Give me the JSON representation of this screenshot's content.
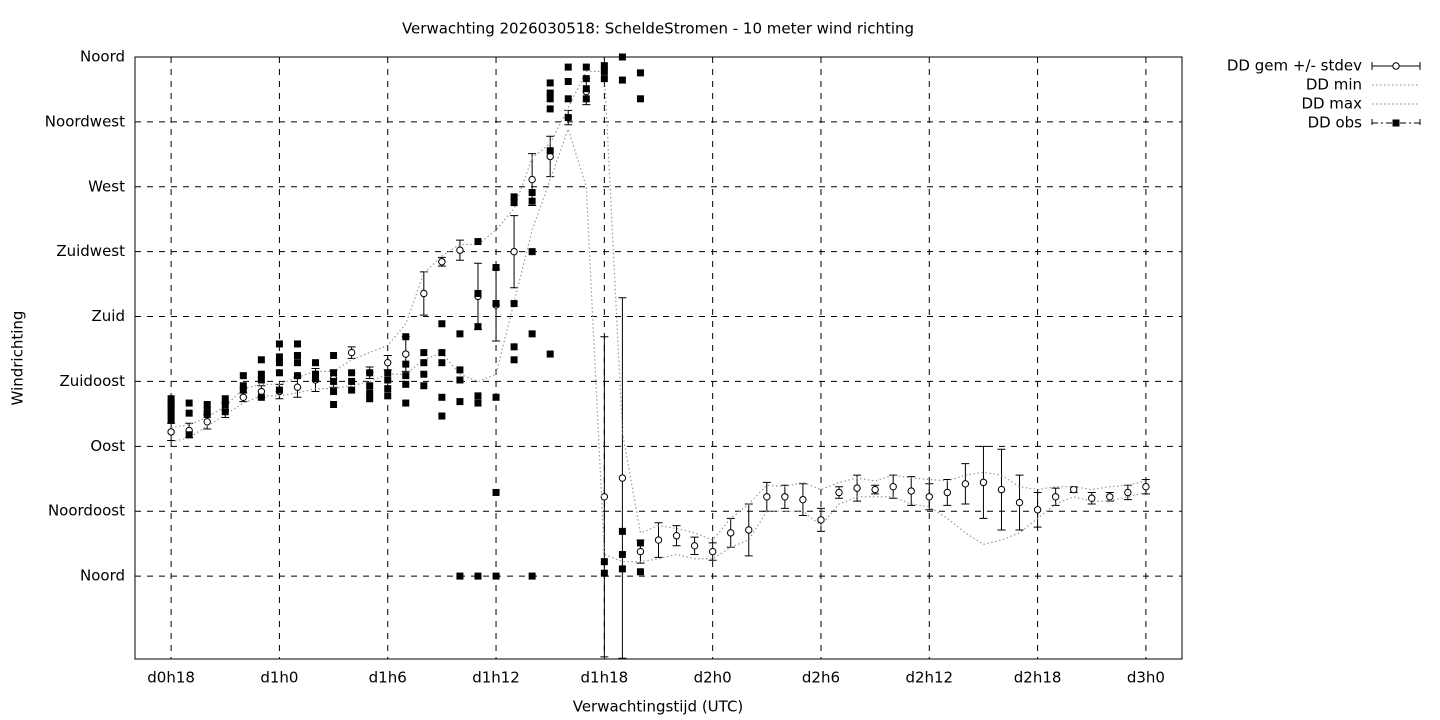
{
  "chart_data": {
    "type": "line",
    "title": "Verwachting 2026030518: ScheldeStromen - 10 meter wind richting",
    "x_label": "Verwachtingstijd (UTC)",
    "y_label": "Windrichting",
    "xlim": [
      16,
      74
    ],
    "ylim": [
      -57.5,
      360
    ],
    "grid": true,
    "legend": "outside-top-right",
    "xticks": [
      {
        "value": 18,
        "label": "d0h18"
      },
      {
        "value": 24,
        "label": "d1h0"
      },
      {
        "value": 30,
        "label": "d1h6"
      },
      {
        "value": 36,
        "label": "d1h12"
      },
      {
        "value": 42,
        "label": "d1h18"
      },
      {
        "value": 48,
        "label": "d2h0"
      },
      {
        "value": 54,
        "label": "d2h6"
      },
      {
        "value": 60,
        "label": "d2h12"
      },
      {
        "value": 66,
        "label": "d2h18"
      },
      {
        "value": 72,
        "label": "d3h0"
      }
    ],
    "yticks": [
      {
        "value": 0,
        "label": "Noord"
      },
      {
        "value": 45,
        "label": "Noordoost"
      },
      {
        "value": 90,
        "label": "Oost"
      },
      {
        "value": 135,
        "label": "Zuidoost"
      },
      {
        "value": 180,
        "label": "Zuid"
      },
      {
        "value": 225,
        "label": "Zuidwest"
      },
      {
        "value": 270,
        "label": "West"
      },
      {
        "value": 315,
        "label": "Noordwest"
      },
      {
        "value": 360,
        "label": "Noord"
      }
    ],
    "x": [
      18,
      19,
      20,
      21,
      22,
      23,
      24,
      25,
      26,
      27,
      28,
      29,
      30,
      31,
      32,
      33,
      34,
      35,
      36,
      37,
      38,
      39,
      40,
      41,
      42,
      43,
      44,
      45,
      46,
      47,
      48,
      49,
      50,
      51,
      52,
      53,
      54,
      55,
      56,
      57,
      58,
      59,
      60,
      61,
      62,
      63,
      64,
      65,
      66,
      67,
      68,
      69,
      70,
      71,
      72
    ],
    "series": [
      {
        "name": "DD gem +/- stdev",
        "color": "#000000",
        "style": "errorbar",
        "values": [
          100,
          101,
          107,
          115,
          124,
          128,
          128,
          131,
          136,
          137,
          155,
          141,
          148,
          154,
          196,
          218,
          226,
          194,
          188,
          225,
          275,
          291,
          318,
          336,
          55,
          68,
          17,
          25,
          28,
          21,
          17,
          30,
          32,
          55,
          55,
          53,
          39,
          58,
          61,
          60,
          62,
          59,
          55,
          58,
          64,
          65,
          60,
          51,
          46,
          55,
          60,
          54,
          55,
          58,
          62
        ],
        "errors": [
          6,
          5,
          5,
          5,
          3,
          4,
          5,
          7,
          8,
          6,
          4,
          4,
          5,
          12,
          15,
          3,
          7,
          23,
          25,
          25,
          18,
          14,
          5,
          9,
          111,
          125,
          8,
          12,
          7,
          6,
          6,
          10,
          18,
          10,
          8,
          11,
          8,
          4,
          9,
          3,
          8,
          10,
          9,
          9,
          14,
          25,
          28,
          19,
          12,
          6,
          2,
          4,
          3,
          5,
          5
        ]
      },
      {
        "name": "DD min",
        "color": "#999999",
        "style": "dotted",
        "values": [
          93,
          96,
          104,
          112,
          120,
          125,
          125,
          127,
          130,
          130,
          132,
          135,
          140,
          140,
          150,
          155,
          140,
          135,
          140,
          190,
          240,
          275,
          310,
          270,
          15,
          10,
          10,
          12,
          15,
          12,
          12,
          20,
          25,
          45,
          45,
          45,
          35,
          50,
          55,
          55,
          55,
          50,
          48,
          40,
          30,
          22,
          25,
          30,
          40,
          50,
          55,
          52,
          52,
          55,
          58
        ]
      },
      {
        "name": "DD max",
        "color": "#999999",
        "style": "dotted",
        "values": [
          103,
          105,
          110,
          118,
          130,
          133,
          133,
          138,
          142,
          142,
          150,
          155,
          160,
          175,
          210,
          222,
          230,
          230,
          240,
          255,
          290,
          300,
          325,
          350,
          350,
          100,
          30,
          35,
          33,
          30,
          25,
          40,
          50,
          63,
          62,
          65,
          60,
          65,
          68,
          66,
          70,
          68,
          67,
          66,
          70,
          72,
          70,
          62,
          60,
          62,
          62,
          60,
          62,
          63,
          66
        ]
      },
      {
        "name": "DD obs",
        "color": "#000000",
        "style": "points",
        "x": [
          18,
          18,
          18,
          18,
          18,
          18,
          19,
          19,
          19,
          20,
          20,
          20,
          21,
          21,
          21,
          22,
          22,
          22,
          23,
          23,
          23,
          23,
          24,
          24,
          24,
          24,
          24,
          25,
          25,
          25,
          25,
          26,
          26,
          26,
          27,
          27,
          27,
          27,
          27,
          28,
          28,
          28,
          29,
          29,
          29,
          29,
          30,
          30,
          30,
          30,
          31,
          31,
          31,
          31,
          31,
          32,
          32,
          32,
          32,
          33,
          33,
          33,
          33,
          33,
          34,
          34,
          34,
          34,
          34,
          35,
          35,
          35,
          35,
          35,
          35,
          36,
          36,
          36,
          36,
          36,
          37,
          37,
          37,
          37,
          37,
          38,
          38,
          38,
          38,
          38,
          39,
          39,
          39,
          39,
          39,
          39,
          40,
          40,
          40,
          40,
          41,
          41,
          41,
          41,
          42,
          42,
          42,
          42,
          42,
          43,
          43,
          43,
          43,
          43,
          44,
          44,
          44,
          44
        ],
        "values": [
          108,
          112,
          115,
          118,
          120,
          123,
          98,
          113,
          120,
          112,
          115,
          119,
          114,
          119,
          123,
          139,
          132,
          129,
          150,
          140,
          136,
          124,
          161,
          152,
          148,
          141,
          129,
          161,
          153,
          148,
          139,
          148,
          140,
          137,
          153,
          141,
          135,
          128,
          119,
          141,
          135,
          129,
          141,
          132,
          127,
          123,
          141,
          136,
          130,
          125,
          166,
          147,
          139,
          133,
          120,
          155,
          148,
          140,
          132,
          175,
          155,
          148,
          124,
          111,
          168,
          143,
          136,
          121,
          0,
          232,
          196,
          173,
          125,
          120,
          0,
          214,
          189,
          124,
          58,
          0,
          263,
          259,
          189,
          159,
          150,
          266,
          260,
          225,
          168,
          0,
          342,
          335,
          331,
          324,
          295,
          154,
          353,
          343,
          331,
          318,
          353,
          345,
          338,
          331,
          354,
          350,
          345,
          10,
          2,
          360,
          344,
          31,
          15,
          5,
          349,
          331,
          23,
          3
        ]
      }
    ]
  }
}
